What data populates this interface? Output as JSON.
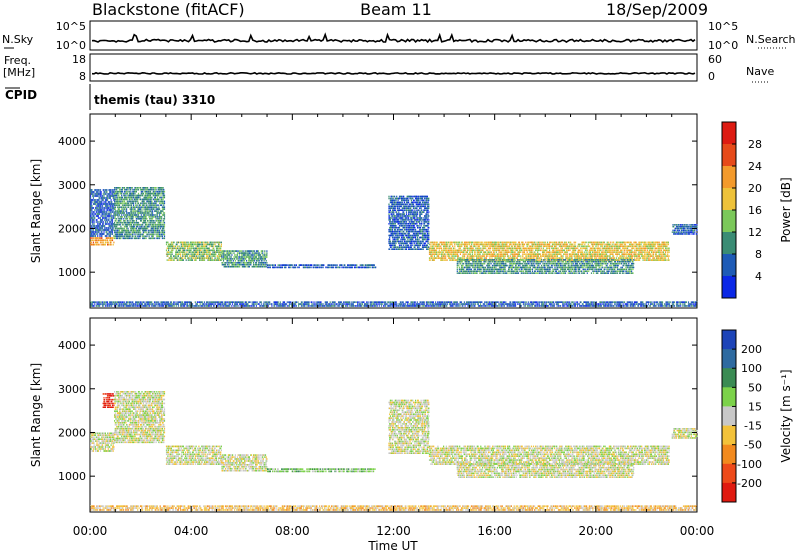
{
  "header": {
    "station": "Blackstone (fitACF)",
    "beam": "Beam 11",
    "date": "18/Sep/2009"
  },
  "noise_panel": {
    "left_label": "N.Sky",
    "right_label": "N.Search",
    "left_ticks": [
      "10^5",
      "10^0"
    ],
    "right_ticks": [
      "10^5",
      "10^0"
    ]
  },
  "freq_panel": {
    "left_label": "Freq.",
    "left_unit": "[MHz]",
    "right_label": "Nave",
    "left_ticks": [
      "18",
      "8"
    ],
    "right_ticks": [
      "60",
      "0"
    ]
  },
  "cpid": {
    "label": "CPID",
    "value": "themis (tau) 3310"
  },
  "chart_data": [
    {
      "type": "heatmap",
      "title": "",
      "xlabel": "Time UT",
      "ylabel": "Slant Range [km]",
      "xlim_hours": [
        0,
        24
      ],
      "ylim_km": [
        180,
        4620
      ],
      "yticks": [
        1000,
        2000,
        3000,
        4000
      ],
      "xticks": [
        "00:00",
        "04:00",
        "08:00",
        "12:00",
        "16:00",
        "20:00",
        "00:00"
      ],
      "colorbar": {
        "label": "Power [dB]",
        "ticks": [
          "4",
          "8",
          "12",
          "16",
          "20",
          "24",
          "28"
        ],
        "colors": [
          "#0b28e6",
          "#1e5bb6",
          "#3a8c74",
          "#7bc85a",
          "#eec23a",
          "#f39a2c",
          "#e64a1a",
          "#dd1b12"
        ]
      },
      "regions": [
        {
          "t0": 0.0,
          "t1": 0.95,
          "r0": 1600,
          "r1": 1800,
          "level": 5
        },
        {
          "t0": 0.0,
          "t1": 0.95,
          "r0": 1800,
          "r1": 2900,
          "level": 1
        },
        {
          "t0": 0.95,
          "t1": 2.95,
          "r0": 1750,
          "r1": 2950,
          "level": 2
        },
        {
          "t0": 3.0,
          "t1": 5.2,
          "r0": 1250,
          "r1": 1700,
          "level": 3
        },
        {
          "t0": 5.2,
          "t1": 7.0,
          "r0": 1100,
          "r1": 1500,
          "level": 2
        },
        {
          "t0": 7.0,
          "t1": 11.3,
          "r0": 1080,
          "r1": 1180,
          "level": 1
        },
        {
          "t0": 11.8,
          "t1": 13.4,
          "r0": 1500,
          "r1": 2750,
          "level": 1
        },
        {
          "t0": 13.4,
          "t1": 22.9,
          "r0": 1250,
          "r1": 1700,
          "level": 4
        },
        {
          "t0": 14.5,
          "t1": 21.5,
          "r0": 950,
          "r1": 1300,
          "level": 2
        },
        {
          "t0": 23.0,
          "t1": 24.0,
          "r0": 1850,
          "r1": 2100,
          "level": 1
        },
        {
          "t0": 0.0,
          "t1": 24.0,
          "r0": 200,
          "r1": 330,
          "level": 1
        }
      ]
    },
    {
      "type": "heatmap",
      "title": "",
      "xlabel": "Time UT",
      "ylabel": "Slant Range [km]",
      "xlim_hours": [
        0,
        24
      ],
      "ylim_km": [
        180,
        4620
      ],
      "yticks": [
        1000,
        2000,
        3000,
        4000
      ],
      "xticks": [
        "00:00",
        "04:00",
        "08:00",
        "12:00",
        "16:00",
        "20:00",
        "00:00"
      ],
      "colorbar": {
        "label": "Velocity [m s⁻¹]",
        "ticks": [
          "200",
          "100",
          "50",
          "15",
          "-15",
          "-50",
          "-100",
          "-200"
        ],
        "colors": [
          "#1d44b8",
          "#2e6aa0",
          "#3a8b53",
          "#7cd24a",
          "#c8c8c8",
          "#f3c23a",
          "#f28a1e",
          "#ee4a1a",
          "#e01a10"
        ]
      },
      "regions": [
        {
          "t0": 0.0,
          "t1": 0.95,
          "r0": 1550,
          "r1": 2000,
          "level": 4
        },
        {
          "t0": 0.5,
          "t1": 0.95,
          "r0": 2550,
          "r1": 2900,
          "level": 8
        },
        {
          "t0": 0.95,
          "t1": 2.95,
          "r0": 1750,
          "r1": 2950,
          "level": 4
        },
        {
          "t0": 3.0,
          "t1": 5.2,
          "r0": 1250,
          "r1": 1700,
          "level": 4
        },
        {
          "t0": 5.2,
          "t1": 7.0,
          "r0": 1100,
          "r1": 1500,
          "level": 4
        },
        {
          "t0": 7.0,
          "t1": 11.3,
          "r0": 1080,
          "r1": 1180,
          "level": 3
        },
        {
          "t0": 11.8,
          "t1": 13.4,
          "r0": 1500,
          "r1": 2750,
          "level": 4
        },
        {
          "t0": 13.4,
          "t1": 22.9,
          "r0": 1250,
          "r1": 1700,
          "level": 4
        },
        {
          "t0": 14.5,
          "t1": 21.5,
          "r0": 950,
          "r1": 1300,
          "level": 4
        },
        {
          "t0": 23.0,
          "t1": 24.0,
          "r0": 1850,
          "r1": 2100,
          "level": 4
        },
        {
          "t0": 0.0,
          "t1": 24.0,
          "r0": 200,
          "r1": 330,
          "level": 5
        }
      ]
    }
  ]
}
